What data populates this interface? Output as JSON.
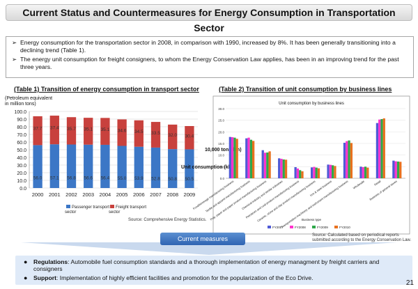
{
  "title": "Current Status and Countermeasures for Energy Consumption in Transportation Sector",
  "bullets": [
    "Energy consumption for the transportation sector in 2008, in comparison with 1990, increased by 8%. It has been generally transitioning into a declining trend (Table 1).",
    "The energy unit consumption for freight consigners, to whom the Energy Conservation Law applies, has been in an improving trend for the past three years."
  ],
  "table1": {
    "heading": "(Table 1) Transition of energy consumption in transport sector",
    "unit_note": "(Petroleum equivalent in million tons)",
    "source": "Source: Comprehensive Energy Statistics."
  },
  "table2": {
    "heading": "(Table 2) Transition of unit consumption by business lines",
    "source": "Source: Calculated based on periodical reports submitted according to the Energy Conservation Law."
  },
  "chart_data": [
    {
      "type": "bar",
      "stacked": true,
      "categories": [
        "2000",
        "2001",
        "2002",
        "2003",
        "2004",
        "2005",
        "2006",
        "2007",
        "2008",
        "2009"
      ],
      "series": [
        {
          "name": "Passenger transport sector",
          "color": "#3c77c6",
          "values": [
            56.0,
            57.1,
            56.8,
            56.6,
            56.4,
            55.0,
            53.9,
            52.8,
            50.8,
            50.5
          ]
        },
        {
          "name": "Freight transport sector",
          "color": "#c8413d",
          "values": [
            37.7,
            37.4,
            35.7,
            35.1,
            35.1,
            34.6,
            34.5,
            33.5,
            32.0,
            30.4
          ]
        }
      ],
      "ylim": [
        0,
        100
      ],
      "yticks": [
        "0.0",
        "10.0",
        "20.0",
        "30.0",
        "40.0",
        "50.0",
        "60.0",
        "70.0",
        "80.0",
        "90.0",
        "100.0"
      ],
      "grid": true,
      "legend": "bottom"
    },
    {
      "type": "bar",
      "title": "Unit consumption by business lines",
      "ylabel": "Unit consumption (kl/ 10,000 tons/km)",
      "xlabel": "Business type",
      "ylim": [
        0,
        30
      ],
      "yticks": [
        "0.0",
        "5.0",
        "10.0",
        "15.0",
        "20.0",
        "25.0",
        "30.0"
      ],
      "categories": [
        "Food/beverage manufacturing business",
        "Textile and apparel manufacturing business",
        "Pulp, paper and paper product manufacturing business",
        "Chemical industry and similar industries",
        "Petroleum and coal product manufacturing business",
        "Ceramic, stone and clay product manufacturing business",
        "Iron & steel business",
        "Transportation machinery and instrument manufacturing business",
        "Wholesale",
        "Retail",
        "Business of general stores"
      ],
      "series": [
        {
          "name": "FY2007",
          "color": "#4f5ad6",
          "values": [
            17.8,
            17.2,
            12.1,
            8.6,
            4.8,
            4.7,
            5.9,
            15.3,
            5.0,
            23.8,
            7.6
          ]
        },
        {
          "name": "FY2008",
          "color": "#ff33cc",
          "values": [
            17.7,
            17.5,
            11.0,
            8.4,
            4.2,
            4.9,
            5.8,
            16.0,
            4.8,
            25.3,
            7.3
          ]
        },
        {
          "name": "FY2009",
          "color": "#2ea84a",
          "values": [
            17.5,
            16.6,
            11.1,
            8.1,
            3.5,
            4.6,
            5.6,
            16.3,
            5.0,
            25.5,
            7.2
          ]
        },
        {
          "name": "FY2010",
          "color": "#e8711e",
          "values": [
            17.0,
            16.1,
            11.6,
            8.0,
            3.0,
            4.3,
            5.3,
            15.2,
            4.6,
            25.8,
            7.1
          ]
        }
      ],
      "legend": "bottom"
    }
  ],
  "current_measures": "Current measures",
  "measures": [
    {
      "label": "Regulations",
      "text": ": Automobile fuel consumption standards and a thorough implementation of energy managment by freight carriers and consigners"
    },
    {
      "label": "Support",
      "text": ": Implementation of highly efficient facilities and promotion for the popularization of the Eco Drive."
    }
  ],
  "page_number": "21"
}
